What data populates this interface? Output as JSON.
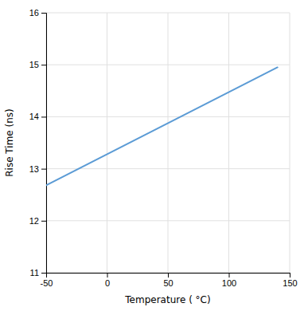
{
  "chart_data": {
    "type": "line",
    "x": [
      -50,
      140
    ],
    "values": [
      12.68,
      14.95
    ],
    "color": "#5B9BD5",
    "xlabel": "Temperature ( °C)",
    "ylabel": "Rise Time (ns)",
    "xlim": [
      -50,
      150
    ],
    "ylim": [
      11,
      16
    ],
    "xticks": [
      -50,
      0,
      50,
      100,
      150
    ],
    "yticks": [
      11,
      12,
      13,
      14,
      15,
      16
    ],
    "grid": true
  }
}
